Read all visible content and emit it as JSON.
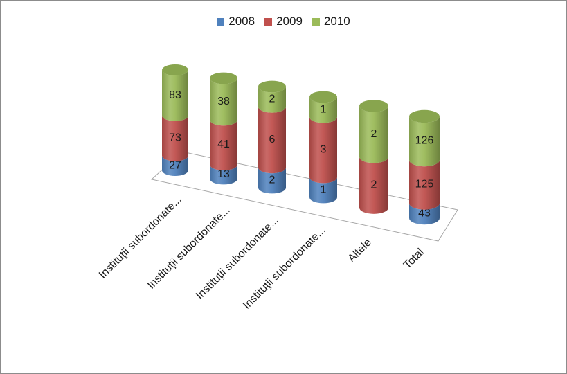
{
  "chart_data": {
    "type": "bar",
    "stacked": true,
    "style": "3d-cylinder",
    "categories": [
      "Instituţii subordonate...",
      "Instituţii subordonate...",
      "Instituţii subordonate...",
      "Instituţii subordonate...",
      "Altele",
      "Total"
    ],
    "series": [
      {
        "name": "2008",
        "color": "#4f81bd",
        "values": [
          27,
          13,
          2,
          1,
          0,
          43
        ]
      },
      {
        "name": "2009",
        "color": "#c0504d",
        "values": [
          73,
          41,
          6,
          3,
          2,
          125
        ]
      },
      {
        "name": "2010",
        "color": "#9bbb59",
        "values": [
          83,
          38,
          2,
          1,
          2,
          126
        ]
      }
    ],
    "legend": "top-center",
    "grid": false,
    "percent_scale": true
  }
}
